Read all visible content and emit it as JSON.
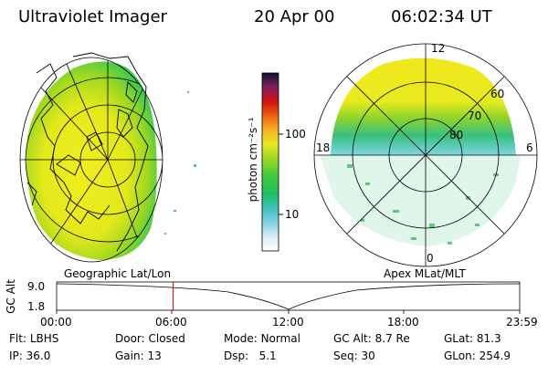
{
  "header": {
    "instrument": "Ultraviolet Imager",
    "date": "20 Apr 00",
    "time": "06:02:34 UT"
  },
  "panels": {
    "left_label": "Geographic Lat/Lon",
    "right_label": "Apex MLat/MLT"
  },
  "colorbar": {
    "label": "photon cm⁻²s⁻¹",
    "ticks": [
      "100",
      "10"
    ],
    "scale": "log"
  },
  "polar_plot": {
    "mlt_labels": {
      "top": "12",
      "left": "18",
      "right": "6",
      "bottom": "0"
    },
    "mlat_labels": [
      "60",
      "70",
      "80"
    ]
  },
  "altitude_track": {
    "ylabel": "GC Alt",
    "ymax": "9.0",
    "ymin": "1.8",
    "x_ticks": [
      "00:00",
      "06:00",
      "12:00",
      "18:00",
      "23:59"
    ],
    "current_time_hours": 6.04,
    "marker_color": "#cc0000"
  },
  "status": {
    "row1": [
      {
        "key": "Flt:",
        "value": "LBHS"
      },
      {
        "key": "Door:",
        "value": "Closed"
      },
      {
        "key": "Mode:",
        "value": "Normal"
      },
      {
        "key": "GC Alt:",
        "value": "8.7 Re"
      },
      {
        "key": "GLat:",
        "value": "81.3"
      }
    ],
    "row2": [
      {
        "key": "IP:",
        "value": "36.0"
      },
      {
        "key": "Gain:",
        "value": "13"
      },
      {
        "key": "Dsp:",
        "value": "5.1"
      },
      {
        "key": "Seq:",
        "value": "30"
      },
      {
        "key": "GLon:",
        "value": "254.9"
      }
    ]
  }
}
